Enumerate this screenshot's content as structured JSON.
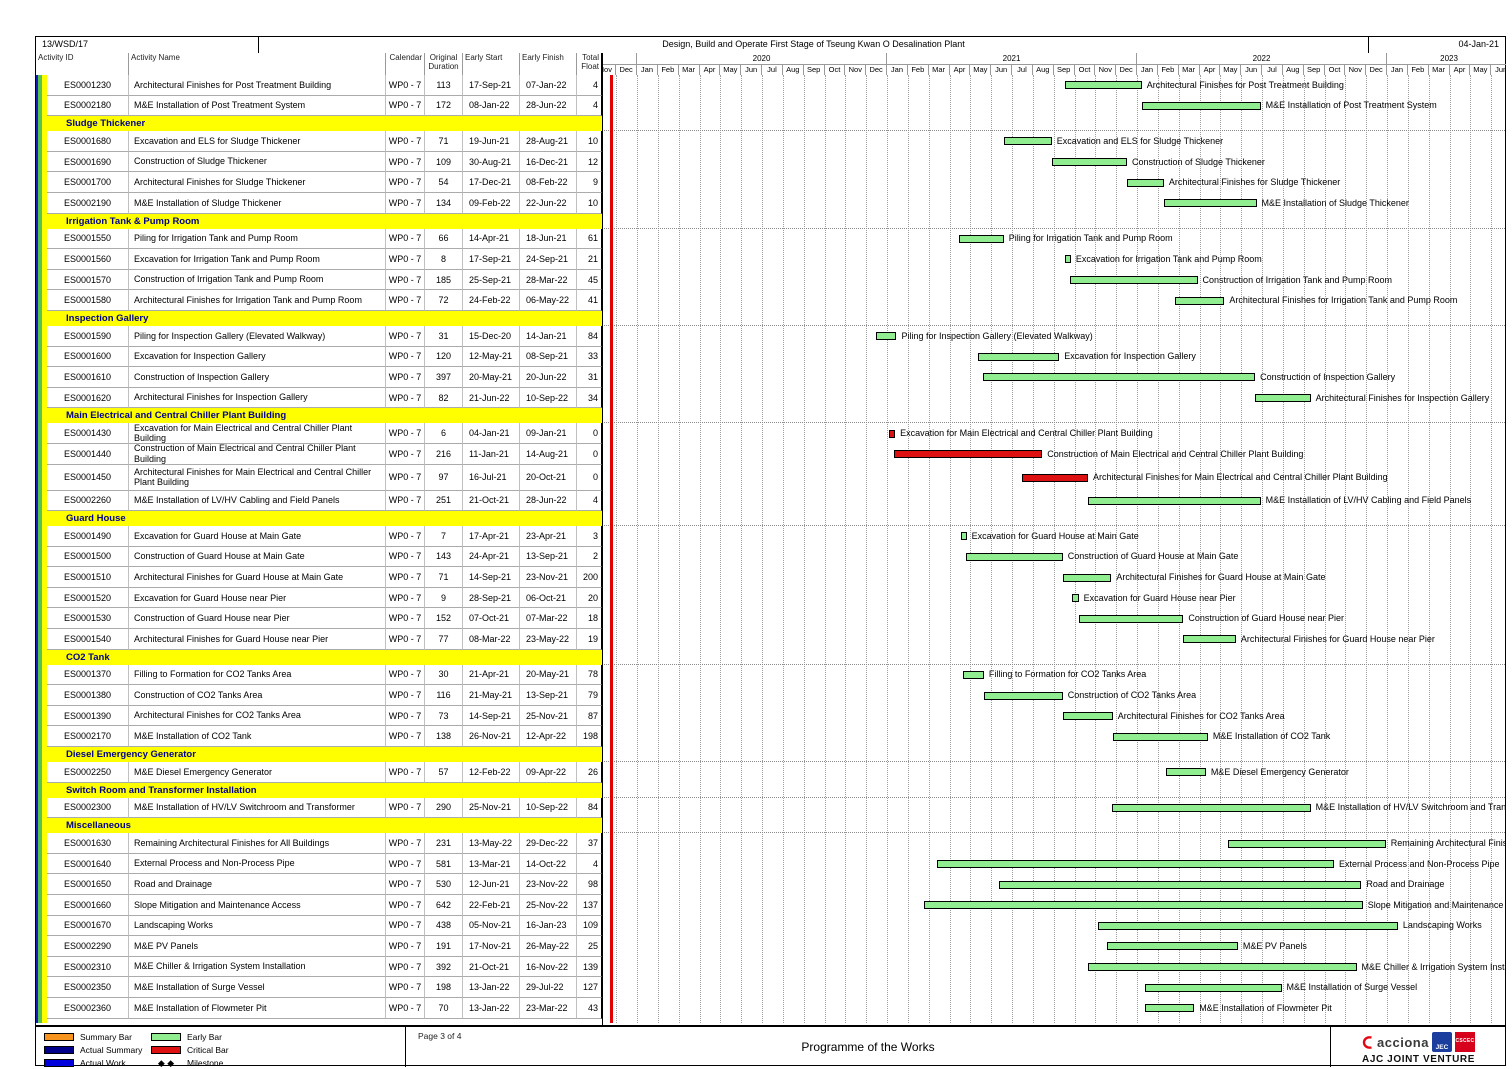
{
  "header": {
    "document_no": "13/WSD/17",
    "title": "Design, Build and Operate First Stage of Tseung Kwan O Desalination Plant",
    "data_date": "04-Jan-21"
  },
  "columns": {
    "activity_id": "Activity ID",
    "activity_name": "Activity Name",
    "calendar": "Calendar",
    "original_duration": "Original Duration",
    "early_start": "Early Start",
    "early_finish": "Early Finish",
    "total_float": "Total Float"
  },
  "timeline": {
    "month_names": [
      "Jan",
      "Feb",
      "Mar",
      "Apr",
      "May",
      "Jun",
      "Jul",
      "Aug",
      "Sep",
      "Oct",
      "Nov",
      "Dec"
    ],
    "start_month": "Nov",
    "start_year": 2019,
    "total_months": 44,
    "years": [
      {
        "label": "",
        "months": 2
      },
      {
        "label": "2020",
        "months": 12
      },
      {
        "label": "2021",
        "months": 12
      },
      {
        "label": "2022",
        "months": 12
      },
      {
        "label": "2023",
        "months": 6
      }
    ]
  },
  "rows": [
    {
      "type": "activity",
      "id": "ES0001230",
      "name": "Architectural Finishes for Post Treatment Building",
      "calendar": "WP0 - 7",
      "duration": "113",
      "start": "17-Sep-21",
      "finish": "07-Jan-22",
      "float": "4"
    },
    {
      "type": "activity",
      "id": "ES0002180",
      "name": "M&E Installation of Post Treatment System",
      "calendar": "WP0 - 7",
      "duration": "172",
      "start": "08-Jan-22",
      "finish": "28-Jun-22",
      "float": "4"
    },
    {
      "type": "section",
      "name": "Sludge Thickener"
    },
    {
      "type": "activity",
      "id": "ES0001680",
      "name": "Excavation and ELS for Sludge Thickener",
      "calendar": "WP0 - 7",
      "duration": "71",
      "start": "19-Jun-21",
      "finish": "28-Aug-21",
      "float": "10"
    },
    {
      "type": "activity",
      "id": "ES0001690",
      "name": "Construction of Sludge Thickener",
      "calendar": "WP0 - 7",
      "duration": "109",
      "start": "30-Aug-21",
      "finish": "16-Dec-21",
      "float": "12"
    },
    {
      "type": "activity",
      "id": "ES0001700",
      "name": "Architectural Finishes for Sludge Thickener",
      "calendar": "WP0 - 7",
      "duration": "54",
      "start": "17-Dec-21",
      "finish": "08-Feb-22",
      "float": "9"
    },
    {
      "type": "activity",
      "id": "ES0002190",
      "name": "M&E Installation of Sludge Thickener",
      "calendar": "WP0 - 7",
      "duration": "134",
      "start": "09-Feb-22",
      "finish": "22-Jun-22",
      "float": "10"
    },
    {
      "type": "section",
      "name": "Irrigation Tank & Pump Room"
    },
    {
      "type": "activity",
      "id": "ES0001550",
      "name": "Piling for Irrigation Tank and Pump Room",
      "calendar": "WP0 - 7",
      "duration": "66",
      "start": "14-Apr-21",
      "finish": "18-Jun-21",
      "float": "61"
    },
    {
      "type": "activity",
      "id": "ES0001560",
      "name": "Excavation for Irrigation Tank and Pump Room",
      "calendar": "WP0 - 7",
      "duration": "8",
      "start": "17-Sep-21",
      "finish": "24-Sep-21",
      "float": "21"
    },
    {
      "type": "activity",
      "id": "ES0001570",
      "name": "Construction of Irrigation Tank and Pump Room",
      "calendar": "WP0 - 7",
      "duration": "185",
      "start": "25-Sep-21",
      "finish": "28-Mar-22",
      "float": "45"
    },
    {
      "type": "activity",
      "id": "ES0001580",
      "name": "Architectural Finishes for Irrigation Tank and Pump Room",
      "calendar": "WP0 - 7",
      "duration": "72",
      "start": "24-Feb-22",
      "finish": "06-May-22",
      "float": "41"
    },
    {
      "type": "section",
      "name": "Inspection Gallery"
    },
    {
      "type": "activity",
      "id": "ES0001590",
      "name": "Piling for Inspection Gallery (Elevated Walkway)",
      "calendar": "WP0 - 7",
      "duration": "31",
      "start": "15-Dec-20",
      "finish": "14-Jan-21",
      "float": "84"
    },
    {
      "type": "activity",
      "id": "ES0001600",
      "name": "Excavation for Inspection Gallery",
      "calendar": "WP0 - 7",
      "duration": "120",
      "start": "12-May-21",
      "finish": "08-Sep-21",
      "float": "33"
    },
    {
      "type": "activity",
      "id": "ES0001610",
      "name": "Construction of Inspection Gallery",
      "calendar": "WP0 - 7",
      "duration": "397",
      "start": "20-May-21",
      "finish": "20-Jun-22",
      "float": "31"
    },
    {
      "type": "activity",
      "id": "ES0001620",
      "name": "Architectural Finishes for Inspection Gallery",
      "calendar": "WP0 - 7",
      "duration": "82",
      "start": "21-Jun-22",
      "finish": "10-Sep-22",
      "float": "34"
    },
    {
      "type": "section",
      "name": "Main Electrical and Central Chiller Plant Building"
    },
    {
      "type": "activity",
      "id": "ES0001430",
      "name": "Excavation for Main Electrical and Central Chiller Plant Building",
      "calendar": "WP0 - 7",
      "duration": "6",
      "start": "04-Jan-21",
      "finish": "09-Jan-21",
      "float": "0",
      "critical": true
    },
    {
      "type": "activity",
      "id": "ES0001440",
      "name": "Construction of Main Electrical and Central Chiller Plant Building",
      "calendar": "WP0 - 7",
      "duration": "216",
      "start": "11-Jan-21",
      "finish": "14-Aug-21",
      "float": "0",
      "critical": true
    },
    {
      "type": "activity",
      "id": "ES0001450",
      "name": "Architectural Finishes for Main Electrical and Central Chiller Plant Building",
      "calendar": "WP0 - 7",
      "duration": "97",
      "start": "16-Jul-21",
      "finish": "20-Oct-21",
      "float": "0",
      "critical": true,
      "tall": true
    },
    {
      "type": "activity",
      "id": "ES0002260",
      "name": "M&E Installation of LV/HV Cabling and Field Panels",
      "calendar": "WP0 - 7",
      "duration": "251",
      "start": "21-Oct-21",
      "finish": "28-Jun-22",
      "float": "4"
    },
    {
      "type": "section",
      "name": "Guard House"
    },
    {
      "type": "activity",
      "id": "ES0001490",
      "name": "Excavation for Guard House at Main Gate",
      "calendar": "WP0 - 7",
      "duration": "7",
      "start": "17-Apr-21",
      "finish": "23-Apr-21",
      "float": "3"
    },
    {
      "type": "activity",
      "id": "ES0001500",
      "name": "Construction of Guard House at Main Gate",
      "calendar": "WP0 - 7",
      "duration": "143",
      "start": "24-Apr-21",
      "finish": "13-Sep-21",
      "float": "2"
    },
    {
      "type": "activity",
      "id": "ES0001510",
      "name": "Architectural Finishes for Guard House at Main Gate",
      "calendar": "WP0 - 7",
      "duration": "71",
      "start": "14-Sep-21",
      "finish": "23-Nov-21",
      "float": "200"
    },
    {
      "type": "activity",
      "id": "ES0001520",
      "name": "Excavation for Guard House near Pier",
      "calendar": "WP0 - 7",
      "duration": "9",
      "start": "28-Sep-21",
      "finish": "06-Oct-21",
      "float": "20"
    },
    {
      "type": "activity",
      "id": "ES0001530",
      "name": "Construction of Guard House near Pier",
      "calendar": "WP0 - 7",
      "duration": "152",
      "start": "07-Oct-21",
      "finish": "07-Mar-22",
      "float": "18"
    },
    {
      "type": "activity",
      "id": "ES0001540",
      "name": "Architectural Finishes for Guard House near Pier",
      "calendar": "WP0 - 7",
      "duration": "77",
      "start": "08-Mar-22",
      "finish": "23-May-22",
      "float": "19"
    },
    {
      "type": "section",
      "name": "CO2 Tank"
    },
    {
      "type": "activity",
      "id": "ES0001370",
      "name": "Filling to Formation for CO2 Tanks Area",
      "calendar": "WP0 - 7",
      "duration": "30",
      "start": "21-Apr-21",
      "finish": "20-May-21",
      "float": "78"
    },
    {
      "type": "activity",
      "id": "ES0001380",
      "name": "Construction of CO2 Tanks Area",
      "calendar": "WP0 - 7",
      "duration": "116",
      "start": "21-May-21",
      "finish": "13-Sep-21",
      "float": "79"
    },
    {
      "type": "activity",
      "id": "ES0001390",
      "name": "Architectural Finishes for CO2 Tanks Area",
      "calendar": "WP0 - 7",
      "duration": "73",
      "start": "14-Sep-21",
      "finish": "25-Nov-21",
      "float": "87"
    },
    {
      "type": "activity",
      "id": "ES0002170",
      "name": "M&E Installation of CO2 Tank",
      "calendar": "WP0 - 7",
      "duration": "138",
      "start": "26-Nov-21",
      "finish": "12-Apr-22",
      "float": "198"
    },
    {
      "type": "section",
      "name": "Diesel Emergency Generator"
    },
    {
      "type": "activity",
      "id": "ES0002250",
      "name": "M&E Diesel Emergency Generator",
      "calendar": "WP0 - 7",
      "duration": "57",
      "start": "12-Feb-22",
      "finish": "09-Apr-22",
      "float": "26"
    },
    {
      "type": "section",
      "name": "Switch Room and Transformer Installation"
    },
    {
      "type": "activity",
      "id": "ES0002300",
      "name": "M&E Installation of HV/LV Switchroom and Transformer",
      "calendar": "WP0 - 7",
      "duration": "290",
      "start": "25-Nov-21",
      "finish": "10-Sep-22",
      "float": "84"
    },
    {
      "type": "section",
      "name": "Miscellaneous"
    },
    {
      "type": "activity",
      "id": "ES0001630",
      "name": "Remaining Architectural Finishes for All Buildings",
      "calendar": "WP0 - 7",
      "duration": "231",
      "start": "13-May-22",
      "finish": "29-Dec-22",
      "float": "37"
    },
    {
      "type": "activity",
      "id": "ES0001640",
      "name": "External Process and Non-Process Pipe",
      "calendar": "WP0 - 7",
      "duration": "581",
      "start": "13-Mar-21",
      "finish": "14-Oct-22",
      "float": "4"
    },
    {
      "type": "activity",
      "id": "ES0001650",
      "name": "Road and Drainage",
      "calendar": "WP0 - 7",
      "duration": "530",
      "start": "12-Jun-21",
      "finish": "23-Nov-22",
      "float": "98"
    },
    {
      "type": "activity",
      "id": "ES0001660",
      "name": "Slope Mitigation and Maintenance Access",
      "calendar": "WP0 - 7",
      "duration": "642",
      "start": "22-Feb-21",
      "finish": "25-Nov-22",
      "float": "137"
    },
    {
      "type": "activity",
      "id": "ES0001670",
      "name": "Landscaping Works",
      "calendar": "WP0 - 7",
      "duration": "438",
      "start": "05-Nov-21",
      "finish": "16-Jan-23",
      "float": "109"
    },
    {
      "type": "activity",
      "id": "ES0002290",
      "name": "M&E PV Panels",
      "calendar": "WP0 - 7",
      "duration": "191",
      "start": "17-Nov-21",
      "finish": "26-May-22",
      "float": "25"
    },
    {
      "type": "activity",
      "id": "ES0002310",
      "name": "M&E Chiller & Irrigation System Installation",
      "calendar": "WP0 - 7",
      "duration": "392",
      "start": "21-Oct-21",
      "finish": "16-Nov-22",
      "float": "139"
    },
    {
      "type": "activity",
      "id": "ES0002350",
      "name": "M&E Installation of Surge Vessel",
      "calendar": "WP0 - 7",
      "duration": "198",
      "start": "13-Jan-22",
      "finish": "29-Jul-22",
      "float": "127"
    },
    {
      "type": "activity",
      "id": "ES0002360",
      "name": "M&E Installation of  Flowmeter Pit",
      "calendar": "WP0 - 7",
      "duration": "70",
      "start": "13-Jan-22",
      "finish": "23-Mar-22",
      "float": "43"
    }
  ],
  "bar_colors": {
    "early": "#90ee90",
    "critical": "#dd1111",
    "data_date_line": "#e30000",
    "section_band": "#ffff00",
    "section_text": "#00008b"
  },
  "legend": [
    {
      "label": "Summary Bar",
      "color": "#f7941e"
    },
    {
      "label": "Actual Summary",
      "color": "#00008b"
    },
    {
      "label": "Actual Work",
      "color": "#0000dd"
    },
    {
      "label": "Early Bar",
      "color": "#90ee90"
    },
    {
      "label": "Critical Bar",
      "color": "#dd1111"
    },
    {
      "label": "Milestone",
      "symbol": "◆ ◆"
    }
  ],
  "footer": {
    "page_label": "Page 3 of 4",
    "center_title": "Programme of the Works",
    "logo_acciona": "acciona",
    "logo_jec": "JEC",
    "logo_cscec": "CSCEC",
    "joint_venture": "AJC JOINT VENTURE"
  }
}
